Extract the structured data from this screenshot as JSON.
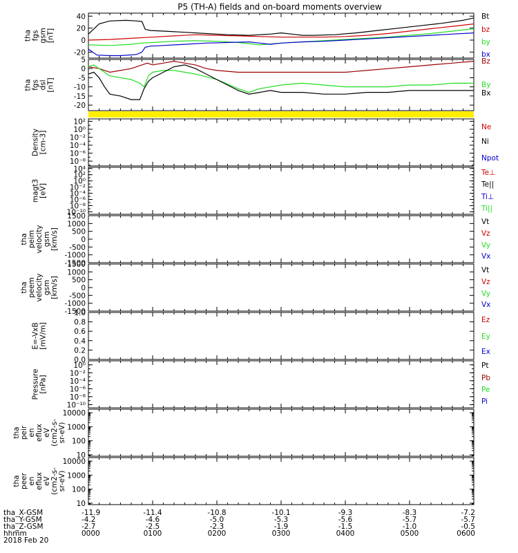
{
  "title": "P5 (TH-A) fields and on-board moments overview",
  "colors": {
    "black": "#000000",
    "red": "#cc0000",
    "darkred": "#990000",
    "green": "#22dd22",
    "blue": "#0000cc",
    "yellow": "#ffee00"
  },
  "chart_data": [
    {
      "id": "fgs_gsm",
      "type": "line",
      "ylabel_lines": [
        "tha",
        "fgs",
        "gsm",
        "[nT]"
      ],
      "ylim": [
        -30,
        45
      ],
      "yticks": [
        {
          "v": 40,
          "t": "40"
        },
        {
          "v": 20,
          "t": "20"
        },
        {
          "v": 0,
          "t": "0"
        },
        {
          "v": -20,
          "t": "-20"
        }
      ],
      "legend": [
        {
          "t": "Bt",
          "c": "black"
        },
        {
          "t": "bz",
          "c": "red"
        },
        {
          "t": "by",
          "c": "green"
        },
        {
          "t": "bx",
          "c": "blue"
        }
      ],
      "series": [
        {
          "c": "black",
          "x": [
            0,
            10,
            20,
            35,
            45,
            50,
            53,
            58,
            70,
            90,
            110,
            130,
            150,
            160,
            170,
            180,
            190,
            200,
            210,
            230,
            250,
            270,
            290,
            310,
            330,
            350,
            360
          ],
          "y": [
            10,
            27,
            32,
            33,
            32,
            31,
            18,
            16,
            15,
            13,
            11,
            9,
            8,
            9,
            10,
            12,
            10,
            8,
            8,
            9,
            12,
            16,
            20,
            24,
            28,
            33,
            37
          ]
        },
        {
          "c": "red",
          "x": [
            0,
            20,
            40,
            60,
            80,
            100,
            120,
            140,
            160,
            180,
            200,
            220,
            240,
            260,
            280,
            300,
            320,
            340,
            360
          ],
          "y": [
            0,
            1,
            3,
            5,
            7,
            9,
            8,
            7,
            6,
            5,
            5,
            5,
            6,
            8,
            11,
            15,
            19,
            23,
            27
          ]
        },
        {
          "c": "green",
          "x": [
            0,
            20,
            40,
            50,
            60,
            80,
            100,
            120,
            140,
            160,
            180,
            200,
            220,
            240,
            260,
            280,
            300,
            320,
            340,
            360
          ],
          "y": [
            -8,
            -9,
            -7,
            -5,
            -4,
            -2,
            -1,
            -2,
            -4,
            -8,
            -5,
            -3,
            -1,
            1,
            3,
            5,
            8,
            11,
            15,
            19
          ]
        },
        {
          "c": "blue",
          "x": [
            0,
            8,
            20,
            30,
            45,
            50,
            53,
            58,
            70,
            90,
            110,
            130,
            150,
            160,
            170,
            180,
            200,
            220,
            240,
            260,
            280,
            300,
            320,
            340,
            360
          ],
          "y": [
            -15,
            -25,
            -26,
            -26,
            -24,
            -20,
            -12,
            -10,
            -9,
            -7,
            -5,
            -4,
            -3,
            -5,
            -7,
            -5,
            -3,
            -2,
            0,
            2,
            4,
            6,
            8,
            10,
            12
          ]
        }
      ]
    },
    {
      "id": "fgs_dsl",
      "type": "line",
      "ylabel_lines": [
        "tha",
        "fgs",
        "dsl",
        "[nT]"
      ],
      "ylim": [
        -23,
        5
      ],
      "yticks": [
        {
          "v": 5,
          "t": "5"
        },
        {
          "v": 0,
          "t": "0"
        },
        {
          "v": -5,
          "t": "-5"
        },
        {
          "v": -10,
          "t": "-10"
        },
        {
          "v": -15,
          "t": "-15"
        },
        {
          "v": -20,
          "t": "-20"
        }
      ],
      "legend": [
        {
          "t": "Bz",
          "c": "darkred"
        },
        {
          "t": "By",
          "c": "green"
        },
        {
          "t": "Bx",
          "c": "black"
        }
      ],
      "series": [
        {
          "c": "darkred",
          "x": [
            0,
            10,
            20,
            30,
            40,
            50,
            55,
            60,
            70,
            80,
            90,
            100,
            110,
            120,
            140,
            160,
            180,
            200,
            220,
            240,
            260,
            280,
            300,
            320,
            340,
            360
          ],
          "y": [
            1,
            0,
            -2,
            -1,
            0,
            2,
            3,
            2,
            3,
            4,
            3,
            2,
            0,
            -1,
            -2,
            -2,
            -2,
            -2,
            -2,
            -2,
            -1,
            0,
            1,
            2,
            3,
            4
          ]
        },
        {
          "c": "green",
          "x": [
            0,
            5,
            10,
            20,
            30,
            40,
            48,
            52,
            56,
            60,
            70,
            80,
            90,
            100,
            120,
            140,
            150,
            160,
            180,
            200,
            220,
            240,
            260,
            280,
            300,
            320,
            340,
            360
          ],
          "y": [
            1,
            2,
            0,
            -4,
            -5,
            -6,
            -8,
            -10,
            -4,
            -2,
            -1,
            -1,
            -2,
            -3,
            -6,
            -11,
            -13,
            -11,
            -9,
            -8,
            -9,
            -10,
            -10,
            -10,
            -9,
            -9,
            -8,
            -8
          ]
        },
        {
          "c": "black",
          "x": [
            0,
            5,
            10,
            15,
            20,
            30,
            40,
            48,
            52,
            56,
            60,
            70,
            80,
            90,
            100,
            110,
            120,
            130,
            140,
            150,
            160,
            170,
            180,
            200,
            220,
            240,
            260,
            280,
            300,
            320,
            340,
            360
          ],
          "y": [
            -3,
            -2,
            -5,
            -10,
            -14,
            -15,
            -17,
            -17,
            -11,
            -7,
            -5,
            -2,
            1,
            2,
            0,
            -3,
            -6,
            -9,
            -12,
            -14,
            -13,
            -12,
            -13,
            -13,
            -14,
            -14,
            -13,
            -13,
            -12,
            -12,
            -12,
            -12
          ]
        }
      ]
    },
    {
      "id": "flag",
      "type": "bar",
      "color": "yellow"
    },
    {
      "id": "density",
      "type": "line",
      "ylabel_lines": [
        "Density",
        "[cm-3]"
      ],
      "yscale": "log",
      "ylim": [
        -9.2,
        2.6
      ],
      "yticks": [
        {
          "v": 2,
          "t": "10²"
        },
        {
          "v": 0,
          "t": "10⁰"
        },
        {
          "v": -2,
          "t": "10⁻²"
        },
        {
          "v": -4,
          "t": "10⁻⁴"
        },
        {
          "v": -6,
          "t": "10⁻⁶"
        },
        {
          "v": -8,
          "t": "10⁻⁸"
        }
      ],
      "legend": [
        {
          "t": "Ne",
          "c": "red"
        },
        {
          "t": "Ni",
          "c": "black"
        },
        {
          "t": "Npot",
          "c": "blue"
        }
      ],
      "series": []
    },
    {
      "id": "temperature",
      "type": "line",
      "ylabel_lines": [
        "magt3",
        "[eV]"
      ],
      "yscale": "log",
      "ylim": [
        -10.8,
        4.4
      ],
      "yticks": [
        {
          "v": 4,
          "t": "10⁴"
        },
        {
          "v": 2,
          "t": "10²"
        },
        {
          "v": 0,
          "t": "10⁰"
        },
        {
          "v": -2,
          "t": "10⁻²"
        },
        {
          "v": -4,
          "t": "10⁻⁴"
        },
        {
          "v": -6,
          "t": "10⁻⁶"
        },
        {
          "v": -8,
          "t": "10⁻⁸"
        },
        {
          "v": -10,
          "t": "10⁻¹⁰"
        }
      ],
      "legend": [
        {
          "t": "Te⊥",
          "c": "red"
        },
        {
          "t": "Te||",
          "c": "black"
        },
        {
          "t": "Ti⊥",
          "c": "blue"
        },
        {
          "t": "Ti||",
          "c": "green"
        }
      ],
      "series": []
    },
    {
      "id": "peim_velocity",
      "type": "line",
      "ylabel_lines": [
        "tha",
        "peim",
        "velocity",
        "gsm",
        "[km/s]"
      ],
      "ylim": [
        -1500,
        1500
      ],
      "yticks": [
        {
          "v": 1500,
          "t": "1500"
        },
        {
          "v": 1000,
          "t": "1000"
        },
        {
          "v": 500,
          "t": "500"
        },
        {
          "v": 0,
          "t": "0"
        },
        {
          "v": -500,
          "t": "-500"
        },
        {
          "v": -1000,
          "t": "-1000"
        },
        {
          "v": -1500,
          "t": "-1500"
        }
      ],
      "legend": [
        {
          "t": "Vt",
          "c": "black"
        },
        {
          "t": "Vz",
          "c": "red"
        },
        {
          "t": "Vy",
          "c": "green"
        },
        {
          "t": "Vx",
          "c": "blue"
        }
      ],
      "series": []
    },
    {
      "id": "peem_velocity",
      "type": "line",
      "ylabel_lines": [
        "tha",
        "peem",
        "velocity",
        "gsm",
        "[km/s]"
      ],
      "ylim": [
        -1500,
        1500
      ],
      "yticks": [
        {
          "v": 1500,
          "t": "1500"
        },
        {
          "v": 1000,
          "t": "1000"
        },
        {
          "v": 500,
          "t": "500"
        },
        {
          "v": 0,
          "t": "0"
        },
        {
          "v": -500,
          "t": "-500"
        },
        {
          "v": -1000,
          "t": "-1000"
        },
        {
          "v": -1500,
          "t": "-1500"
        }
      ],
      "legend": [
        {
          "t": "Vt",
          "c": "black"
        },
        {
          "t": "Vz",
          "c": "red"
        },
        {
          "t": "Vy",
          "c": "green"
        },
        {
          "t": "Vx",
          "c": "blue"
        }
      ],
      "series": []
    },
    {
      "id": "efield",
      "type": "line",
      "ylabel_lines": [
        "E=-VxB",
        "[mV/m]"
      ],
      "ylim": [
        0,
        1
      ],
      "yticks": [
        {
          "v": 1,
          "t": "1.0"
        },
        {
          "v": 0.8,
          "t": "0.8"
        },
        {
          "v": 0.6,
          "t": "0.6"
        },
        {
          "v": 0.4,
          "t": "0.4"
        },
        {
          "v": 0.2,
          "t": "0.2"
        },
        {
          "v": 0,
          "t": "0.0"
        }
      ],
      "legend": [
        {
          "t": "Ez",
          "c": "red"
        },
        {
          "t": "Ey",
          "c": "green"
        },
        {
          "t": "Ex",
          "c": "blue"
        }
      ],
      "series": []
    },
    {
      "id": "pressure",
      "type": "line",
      "ylabel_lines": [
        "Pressure",
        "[nPa]"
      ],
      "yscale": "log",
      "ylim": [
        -10.8,
        1
      ],
      "yticks": [
        {
          "v": 0,
          "t": "10⁰"
        },
        {
          "v": -2,
          "t": "10⁻²"
        },
        {
          "v": -4,
          "t": "10⁻⁴"
        },
        {
          "v": -6,
          "t": "10⁻⁶"
        },
        {
          "v": -8,
          "t": "10⁻⁸"
        },
        {
          "v": -10,
          "t": "10⁻¹⁰"
        }
      ],
      "legend": [
        {
          "t": "Pt",
          "c": "black"
        },
        {
          "t": "Pb",
          "c": "darkred"
        },
        {
          "t": "Pe",
          "c": "green"
        },
        {
          "t": "Pi",
          "c": "blue"
        }
      ],
      "series": []
    },
    {
      "id": "peir_flux",
      "type": "heatmap",
      "ylabel_lines": [
        "tha",
        "peir",
        "en",
        "eflux",
        "eV",
        "(cm2-s-",
        "sr-eV)"
      ],
      "yscale": "log",
      "ylim": [
        0.9,
        4.25
      ],
      "yticks": [
        {
          "v": 4,
          "t": "10000"
        },
        {
          "v": 3,
          "t": "1000"
        },
        {
          "v": 2,
          "t": "100"
        },
        {
          "v": 1,
          "t": "10"
        }
      ],
      "legend": []
    },
    {
      "id": "peer_flux",
      "type": "heatmap",
      "ylabel_lines": [
        "tha",
        "peer",
        "en",
        "eflux",
        "eV",
        "(cm2-s-",
        "sr-eV)"
      ],
      "yscale": "log",
      "ylim": [
        0.9,
        4.25
      ],
      "yticks": [
        {
          "v": 4,
          "t": "10000"
        },
        {
          "v": 3,
          "t": "1000"
        },
        {
          "v": 2,
          "t": "100"
        },
        {
          "v": 1,
          "t": "10"
        }
      ],
      "legend": []
    }
  ],
  "xaxis": {
    "range": [
      0,
      360
    ],
    "ticks": [
      0,
      60,
      120,
      180,
      240,
      300,
      360
    ],
    "rows": [
      {
        "label": "tha_X-GSM",
        "values": [
          "-11.9",
          "-11.4",
          "-10.8",
          "-10.1",
          "-9.3",
          "-8.3",
          "-7.2"
        ]
      },
      {
        "label": "tha_Y-GSM",
        "values": [
          "-4.2",
          "-4.6",
          "-5.0",
          "-5.3",
          "-5.6",
          "-5.7",
          "-5.7"
        ]
      },
      {
        "label": "tha_Z-GSM",
        "values": [
          "-2.7",
          "-2.5",
          "-2.3",
          "-1.9",
          "-1.5",
          "-1.0",
          "-0.5"
        ]
      },
      {
        "label": "hhmm",
        "values": [
          "0000",
          "0100",
          "0200",
          "0300",
          "0400",
          "0500",
          "0600"
        ]
      }
    ],
    "date": "2018 Feb 20"
  }
}
